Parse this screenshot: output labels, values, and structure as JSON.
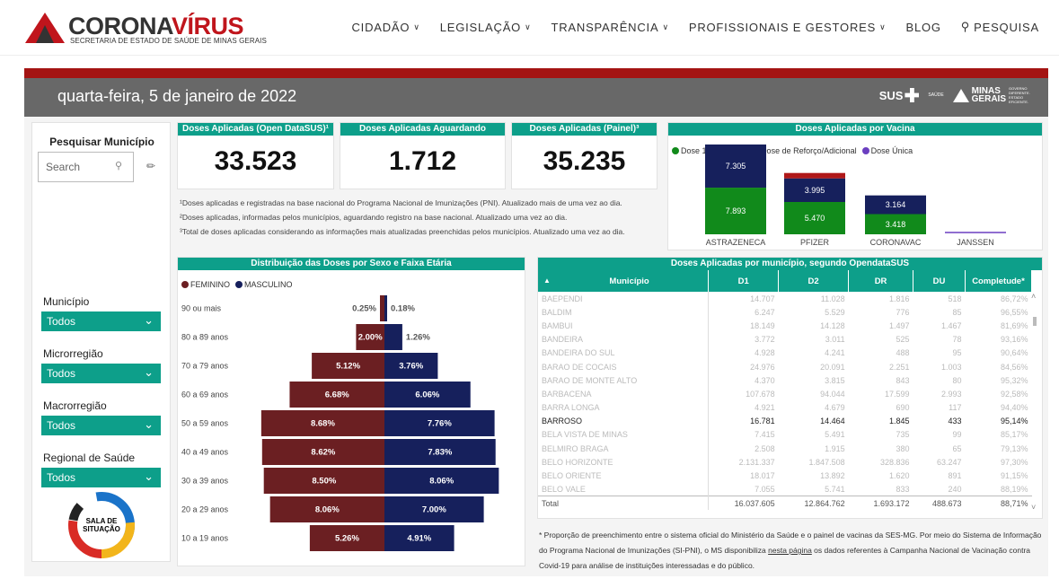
{
  "site": {
    "brand_part1": "CORONA",
    "brand_part2": "VÍRUS",
    "subtitle": "SECRETARIA DE ESTADO DE SAÚDE DE MINAS GERAIS"
  },
  "nav": [
    {
      "label": "CIDADÃO",
      "dropdown": true
    },
    {
      "label": "LEGISLAÇÃO",
      "dropdown": true
    },
    {
      "label": "TRANSPARÊNCIA",
      "dropdown": true
    },
    {
      "label": "PROFISSIONAIS E GESTORES",
      "dropdown": true
    },
    {
      "label": "BLOG",
      "dropdown": false
    },
    {
      "label": "PESQUISA",
      "icon": "search-icon"
    }
  ],
  "header": {
    "date": "quarta-feira, 5 de janeiro de 2022",
    "sus": "SUS",
    "saude": "SAÚDE",
    "mg_line1": "MINAS",
    "mg_line2": "GERAIS",
    "mg_sub": "GOVERNO DIFERENTE. ESTADO EFICIENTE."
  },
  "filters": {
    "title": "Pesquisar Município",
    "search_placeholder": "Search",
    "items": [
      {
        "label": "Município",
        "value": "Todos"
      },
      {
        "label": "Microrregião",
        "value": "Todos"
      },
      {
        "label": "Macrorregião",
        "value": "Todos"
      },
      {
        "label": "Regional de Saúde",
        "value": "Todos"
      }
    ],
    "logo_text_1": "SALA DE",
    "logo_text_2": "SITUAÇÃO"
  },
  "kpis": [
    {
      "title": "Doses Aplicadas (Open DataSUS)¹",
      "value": "33.523"
    },
    {
      "title": "Doses Aplicadas Aguardando Registro²",
      "value": "1.712"
    },
    {
      "title": "Doses Aplicadas (Painel)³",
      "value": "35.235"
    }
  ],
  "notes": [
    "¹Doses aplicadas e registradas na base nacional do Programa Nacional de Imunizações (PNI). Atualizado mais de uma vez ao dia.",
    "²Doses aplicadas, informadas pelos municípios, aguardando registro na base nacional. Atualizado uma vez ao dia.",
    "³Total de doses aplicadas considerando as informações mais atualizadas preenchidas pelos municípios. Atualizado uma vez ao dia."
  ],
  "colors": {
    "teal": "#0d9f8a",
    "dose1": "#118a1b",
    "dose2": "#16205c",
    "reforco": "#b01818",
    "unica": "#6b3fc0",
    "feminino": "#6b1f22",
    "masculino": "#16205c",
    "header_red": "#a41413",
    "header_gray": "#686868"
  },
  "chart_data": [
    {
      "type": "bar",
      "title": "Doses Aplicadas por Vacina",
      "legend": [
        "Dose 1",
        "Dose 2",
        "Dose de Reforço/Adicional",
        "Dose Única"
      ],
      "categories": [
        "ASTRAZENECA",
        "PFIZER",
        "CORONAVAC",
        "JANSSEN"
      ],
      "series": [
        {
          "name": "Dose 1",
          "values": [
            7893,
            5470,
            3418,
            0
          ]
        },
        {
          "name": "Dose 2",
          "values": [
            7305,
            3995,
            3164,
            0
          ]
        },
        {
          "name": "Dose de Reforço/Adicional",
          "values": [
            0,
            0,
            0,
            0
          ]
        },
        {
          "name": "Dose Única",
          "values": [
            0,
            0,
            0,
            0
          ]
        }
      ],
      "labels": [
        [
          "7.893",
          "7.305"
        ],
        [
          "5.470",
          "3.995"
        ],
        [
          "3.418",
          "3.164"
        ],
        []
      ]
    },
    {
      "type": "bar",
      "title": "Distribuição das Doses por Sexo e Faixa Etária",
      "legend": [
        "FEMININO",
        "MASCULINO"
      ],
      "categories": [
        "90 ou mais",
        "80 a 89 anos",
        "70 a 79 anos",
        "60 a 69 anos",
        "50 a 59 anos",
        "40 a 49 anos",
        "30 a 39 anos",
        "20 a 29 anos",
        "10 a 19 anos"
      ],
      "series": [
        {
          "name": "FEMININO",
          "values": [
            0.25,
            2.0,
            5.12,
            6.68,
            8.68,
            8.62,
            8.5,
            8.06,
            5.26
          ]
        },
        {
          "name": "MASCULINO",
          "values": [
            0.18,
            1.26,
            3.76,
            6.06,
            7.76,
            7.83,
            8.06,
            7.0,
            4.91
          ]
        }
      ],
      "value_labels_f": [
        "0.25%",
        "2.00%",
        "5.12%",
        "6.68%",
        "8.68%",
        "8.62%",
        "8.50%",
        "8.06%",
        "5.26%"
      ],
      "value_labels_m": [
        "0.18%",
        "1.26%",
        "3.76%",
        "6.06%",
        "7.76%",
        "7.83%",
        "8.06%",
        "7.00%",
        "4.91%"
      ]
    }
  ],
  "table": {
    "title": "Doses Aplicadas por município, segundo OpendataSUS",
    "columns": [
      "Município",
      "D1",
      "D2",
      "DR",
      "DU",
      "Completude*"
    ],
    "rows": [
      [
        "BAEPENDI",
        "14.707",
        "11.028",
        "1.816",
        "518",
        "86,72%"
      ],
      [
        "BALDIM",
        "6.247",
        "5.529",
        "776",
        "85",
        "96,55%"
      ],
      [
        "BAMBUI",
        "18.149",
        "14.128",
        "1.497",
        "1.467",
        "81,69%"
      ],
      [
        "BANDEIRA",
        "3.772",
        "3.011",
        "525",
        "78",
        "93,16%"
      ],
      [
        "BANDEIRA DO SUL",
        "4.928",
        "4.241",
        "488",
        "95",
        "90,64%"
      ],
      [
        "BARAO DE COCAIS",
        "24.976",
        "20.091",
        "2.251",
        "1.003",
        "84,56%"
      ],
      [
        "BARAO DE MONTE ALTO",
        "4.370",
        "3.815",
        "843",
        "80",
        "95,32%"
      ],
      [
        "BARBACENA",
        "107.678",
        "94.044",
        "17.599",
        "2.993",
        "92,58%"
      ],
      [
        "BARRA LONGA",
        "4.921",
        "4.679",
        "690",
        "117",
        "94,40%"
      ],
      [
        "BARROSO",
        "16.781",
        "14.464",
        "1.845",
        "433",
        "95,14%"
      ],
      [
        "BELA VISTA DE MINAS",
        "7.415",
        "5.491",
        "735",
        "99",
        "85,17%"
      ],
      [
        "BELMIRO BRAGA",
        "2.508",
        "1.915",
        "380",
        "65",
        "79,13%"
      ],
      [
        "BELO HORIZONTE",
        "2.131.337",
        "1.847.508",
        "328.836",
        "63.247",
        "97,30%"
      ],
      [
        "BELO ORIENTE",
        "18.017",
        "13.892",
        "1.620",
        "891",
        "91,15%"
      ],
      [
        "BELO VALE",
        "7.055",
        "5.741",
        "833",
        "240",
        "88,19%"
      ]
    ],
    "highlight_index": 9,
    "total": [
      "Total",
      "16.037.605",
      "12.864.762",
      "1.693.172",
      "488.673",
      "88,71%"
    ]
  },
  "footnote": {
    "part1": "* Proporção de preenchimento entre o sistema oficial do Ministério da Saúde e o painel de vacinas da SES-MG. Por meio do Sistema de Informação do Programa Nacional de Imunizações (SI-PNI), o MS disponibiliza ",
    "link": "nesta página",
    "part2": " os dados referentes à Campanha Nacional de Vacinação contra Covid-19 para análise de instituições interessadas e do público."
  }
}
